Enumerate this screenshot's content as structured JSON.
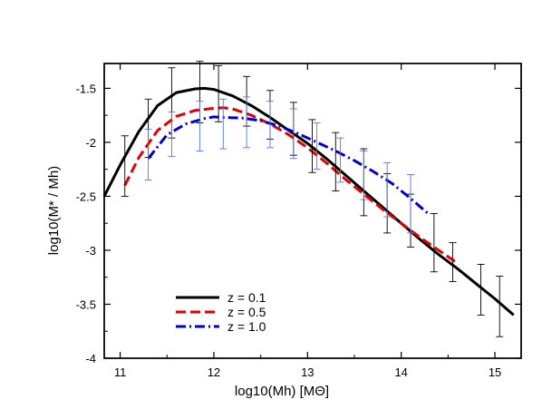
{
  "chart_data": {
    "type": "line",
    "xlabel": "log10(Mh) [MΘ]",
    "ylabel": "log10(M* / Mh)",
    "xlim": [
      10.83,
      15.28
    ],
    "ylim": [
      -4.0,
      -1.27
    ],
    "xticks": [
      11,
      12,
      13,
      14,
      15
    ],
    "yticks": [
      -4,
      -3.5,
      -3,
      -2.5,
      -2,
      -1.5
    ],
    "xtick_labels": [
      "11",
      "12",
      "13",
      "14",
      "15"
    ],
    "ytick_labels": [
      "-4",
      "-3.5",
      "-3",
      "-2.5",
      "-2",
      "-1.5"
    ],
    "grid": false,
    "legend_position": "bottom-left",
    "series": [
      {
        "name": "z = 0.1",
        "color": "#000000",
        "dash": "solid",
        "x": [
          10.83,
          11.0,
          11.2,
          11.4,
          11.6,
          11.8,
          11.9,
          12.0,
          12.2,
          12.4,
          12.6,
          12.8,
          13.0,
          13.2,
          13.4,
          13.6,
          13.8,
          14.0,
          14.2,
          14.4,
          14.6,
          14.8,
          15.0,
          15.2
        ],
        "y": [
          -2.5,
          -2.21,
          -1.9,
          -1.66,
          -1.54,
          -1.505,
          -1.5,
          -1.51,
          -1.57,
          -1.66,
          -1.77,
          -1.89,
          -2.01,
          -2.15,
          -2.3,
          -2.45,
          -2.6,
          -2.75,
          -2.9,
          -3.04,
          -3.17,
          -3.31,
          -3.45,
          -3.6
        ]
      },
      {
        "name": "z = 0.5",
        "color": "#e00000",
        "dash": "dashed",
        "x": [
          11.05,
          11.2,
          11.4,
          11.6,
          11.8,
          12.0,
          12.1,
          12.2,
          12.4,
          12.6,
          12.8,
          13.0,
          13.2,
          13.4,
          13.6,
          13.8,
          14.0,
          14.2,
          14.4,
          14.6
        ],
        "y": [
          -2.4,
          -2.14,
          -1.89,
          -1.76,
          -1.705,
          -1.685,
          -1.68,
          -1.69,
          -1.75,
          -1.83,
          -1.93,
          -2.05,
          -2.19,
          -2.34,
          -2.48,
          -2.62,
          -2.75,
          -2.88,
          -3.0,
          -3.12
        ]
      },
      {
        "name": "z = 1.0",
        "color": "#0000cc",
        "dash": "dashdot",
        "x": [
          11.3,
          11.5,
          11.7,
          11.9,
          12.0,
          12.1,
          12.3,
          12.5,
          12.7,
          12.9,
          13.1,
          13.3,
          13.5,
          13.7,
          13.9,
          14.1,
          14.3
        ],
        "y": [
          -2.15,
          -1.93,
          -1.83,
          -1.78,
          -1.765,
          -1.77,
          -1.775,
          -1.8,
          -1.85,
          -1.92,
          -2.0,
          -2.08,
          -2.17,
          -2.27,
          -2.38,
          -2.52,
          -2.67
        ]
      }
    ],
    "error_bars": [
      {
        "group": "z = 0.1",
        "color": "#000000",
        "points": [
          {
            "x": 11.05,
            "y": -2.23,
            "lo": -2.5,
            "hi": -1.94
          },
          {
            "x": 11.3,
            "y": -1.88,
            "lo": -2.14,
            "hi": -1.6
          },
          {
            "x": 11.55,
            "y": -1.64,
            "lo": -1.96,
            "hi": -1.31
          },
          {
            "x": 11.85,
            "y": -1.52,
            "lo": -1.82,
            "hi": -1.25
          },
          {
            "x": 12.05,
            "y": -1.53,
            "lo": -1.81,
            "hi": -1.29
          },
          {
            "x": 12.35,
            "y": -1.63,
            "lo": -1.85,
            "hi": -1.39
          },
          {
            "x": 12.6,
            "y": -1.75,
            "lo": -1.97,
            "hi": -1.52
          },
          {
            "x": 12.85,
            "y": -1.87,
            "lo": -2.12,
            "hi": -1.63
          },
          {
            "x": 13.05,
            "y": -2.0,
            "lo": -2.28,
            "hi": -1.79
          },
          {
            "x": 13.3,
            "y": -2.17,
            "lo": -2.45,
            "hi": -1.91
          },
          {
            "x": 13.6,
            "y": -2.37,
            "lo": -2.68,
            "hi": -2.06
          },
          {
            "x": 13.85,
            "y": -2.56,
            "lo": -2.84,
            "hi": -2.29
          },
          {
            "x": 14.1,
            "y": -2.74,
            "lo": -2.97,
            "hi": -2.48
          },
          {
            "x": 14.35,
            "y": -2.93,
            "lo": -3.2,
            "hi": -2.66
          },
          {
            "x": 14.55,
            "y": -3.1,
            "lo": -3.29,
            "hi": -2.93
          },
          {
            "x": 14.85,
            "y": -3.37,
            "lo": -3.6,
            "hi": -3.13
          },
          {
            "x": 15.05,
            "y": -3.52,
            "lo": -3.8,
            "hi": -3.24
          }
        ]
      },
      {
        "group": "z = 1.0",
        "color": "#5577dd",
        "points": [
          {
            "x": 11.3,
            "y": -2.12,
            "lo": -2.35,
            "hi": -1.88
          },
          {
            "x": 11.55,
            "y": -1.93,
            "lo": -2.13,
            "hi": -1.72
          },
          {
            "x": 11.85,
            "y": -1.82,
            "lo": -2.08,
            "hi": -1.62
          },
          {
            "x": 12.1,
            "y": -1.78,
            "lo": -2.06,
            "hi": -1.6
          },
          {
            "x": 12.35,
            "y": -1.78,
            "lo": -2.05,
            "hi": -1.58
          },
          {
            "x": 12.6,
            "y": -1.82,
            "lo": -2.05,
            "hi": -1.62
          },
          {
            "x": 12.85,
            "y": -1.92,
            "lo": -2.15,
            "hi": -1.69
          },
          {
            "x": 13.1,
            "y": -2.03,
            "lo": -2.25,
            "hi": -1.82
          },
          {
            "x": 13.35,
            "y": -2.16,
            "lo": -2.37,
            "hi": -1.96
          },
          {
            "x": 13.6,
            "y": -2.3,
            "lo": -2.53,
            "hi": -2.08
          },
          {
            "x": 13.85,
            "y": -2.43,
            "lo": -2.69,
            "hi": -2.19
          },
          {
            "x": 14.1,
            "y": -2.57,
            "lo": -2.84,
            "hi": -2.3
          }
        ]
      }
    ]
  }
}
